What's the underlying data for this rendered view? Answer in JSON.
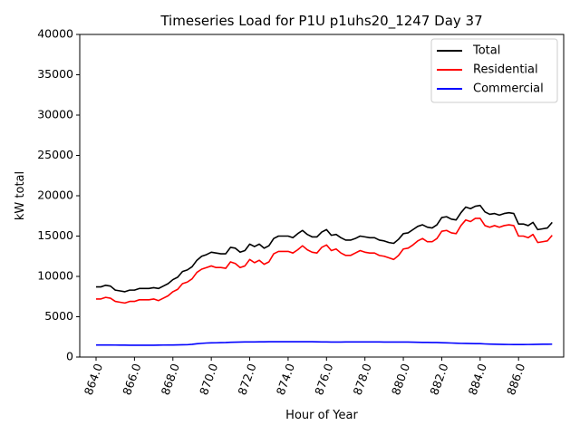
{
  "chart_data": {
    "type": "line",
    "title": "Timeseries Load for P1U p1uhs20_1247  Day 37",
    "xlabel": "Hour of Year",
    "ylabel": "kW total",
    "xlim": [
      863.15,
      888.35
    ],
    "ylim": [
      0,
      40000
    ],
    "xticks": [
      864,
      866,
      868,
      870,
      872,
      874,
      876,
      878,
      880,
      882,
      884,
      886
    ],
    "xtick_labels": [
      "864.0",
      "866.0",
      "868.0",
      "870.0",
      "872.0",
      "874.0",
      "876.0",
      "878.0",
      "880.0",
      "882.0",
      "884.0",
      "886.0"
    ],
    "yticks": [
      0,
      5000,
      10000,
      15000,
      20000,
      25000,
      30000,
      35000,
      40000
    ],
    "ytick_labels": [
      "0",
      "5000",
      "10000",
      "15000",
      "20000",
      "25000",
      "30000",
      "35000",
      "40000"
    ],
    "legend_position": "top-right",
    "x_start": 864.0,
    "x_step": 0.25,
    "series": [
      {
        "name": "Total",
        "color": "#000000",
        "values": [
          8700,
          8700,
          8900,
          8800,
          8300,
          8200,
          8100,
          8300,
          8300,
          8500,
          8500,
          8500,
          8600,
          8500,
          8800,
          9100,
          9600,
          9900,
          10600,
          10800,
          11200,
          12000,
          12500,
          12700,
          13000,
          12900,
          12800,
          12800,
          13600,
          13500,
          13000,
          13200,
          14000,
          13700,
          14000,
          13500,
          13800,
          14700,
          15000,
          15000,
          15000,
          14800,
          15300,
          15700,
          15200,
          14900,
          14900,
          15500,
          15800,
          15100,
          15200,
          14800,
          14500,
          14500,
          14700,
          15000,
          14900,
          14800,
          14800,
          14500,
          14400,
          14200,
          14100,
          14600,
          15300,
          15400,
          15800,
          16200,
          16400,
          16100,
          16000,
          16400,
          17300,
          17400,
          17100,
          17000,
          17900,
          18600,
          18400,
          18700,
          18800,
          18000,
          17700,
          17800,
          17600,
          17800,
          17900,
          17800,
          16500,
          16500,
          16300,
          16700,
          15800,
          15900,
          16000,
          16700
        ]
      },
      {
        "name": "Residential",
        "color": "#ff0000",
        "values": [
          7200,
          7200,
          7400,
          7300,
          6900,
          6800,
          6700,
          6900,
          6900,
          7100,
          7100,
          7100,
          7200,
          7000,
          7300,
          7600,
          8100,
          8400,
          9100,
          9300,
          9700,
          10500,
          10900,
          11100,
          11300,
          11100,
          11100,
          11000,
          11800,
          11600,
          11100,
          11300,
          12100,
          11700,
          12000,
          11500,
          11800,
          12800,
          13100,
          13100,
          13100,
          12900,
          13300,
          13800,
          13300,
          13000,
          12900,
          13600,
          13900,
          13200,
          13400,
          12900,
          12600,
          12600,
          12900,
          13200,
          13000,
          12900,
          12900,
          12600,
          12500,
          12300,
          12100,
          12600,
          13400,
          13500,
          13900,
          14400,
          14700,
          14300,
          14300,
          14700,
          15600,
          15700,
          15400,
          15300,
          16300,
          17000,
          16800,
          17200,
          17200,
          16300,
          16100,
          16300,
          16100,
          16300,
          16400,
          16300,
          15000,
          15000,
          14800,
          15200,
          14200,
          14300,
          14400,
          15100
        ]
      },
      {
        "name": "Commercial",
        "color": "#0000ff",
        "values": [
          1500,
          1500,
          1500,
          1500,
          1490,
          1480,
          1480,
          1470,
          1470,
          1470,
          1470,
          1470,
          1470,
          1480,
          1490,
          1500,
          1500,
          1510,
          1520,
          1530,
          1580,
          1650,
          1700,
          1740,
          1760,
          1770,
          1790,
          1800,
          1830,
          1850,
          1860,
          1870,
          1880,
          1880,
          1890,
          1890,
          1900,
          1900,
          1900,
          1900,
          1900,
          1900,
          1900,
          1900,
          1900,
          1900,
          1890,
          1880,
          1870,
          1860,
          1860,
          1860,
          1870,
          1870,
          1880,
          1880,
          1880,
          1870,
          1870,
          1870,
          1860,
          1860,
          1860,
          1860,
          1860,
          1860,
          1850,
          1830,
          1820,
          1820,
          1810,
          1800,
          1780,
          1760,
          1740,
          1720,
          1700,
          1690,
          1680,
          1670,
          1660,
          1630,
          1610,
          1590,
          1580,
          1570,
          1560,
          1550,
          1550,
          1550,
          1560,
          1570,
          1580,
          1590,
          1590,
          1600
        ]
      }
    ]
  }
}
